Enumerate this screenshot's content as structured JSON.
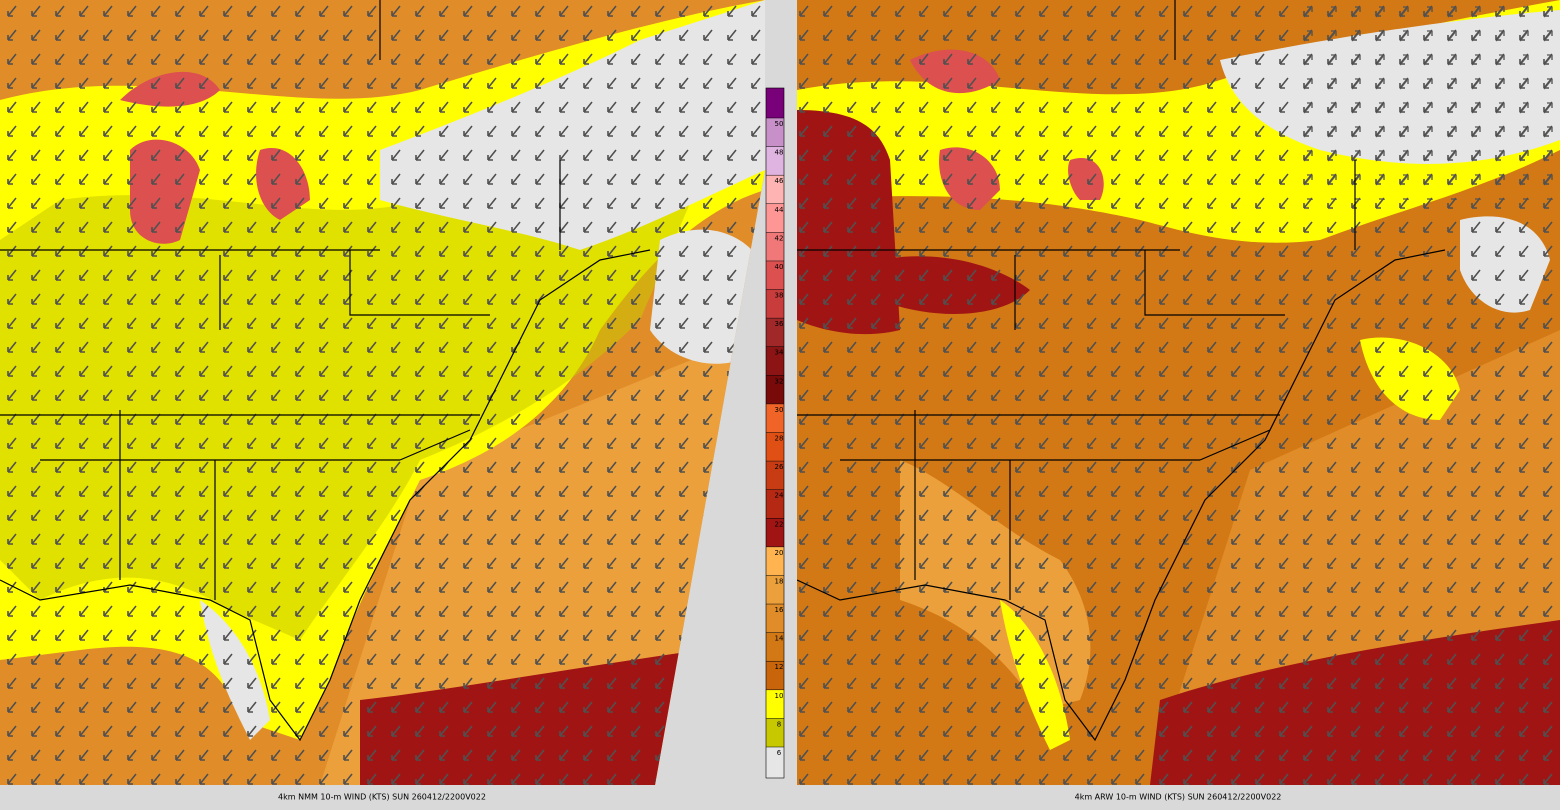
{
  "panels": [
    {
      "caption": "4km NMM 10-m WIND (KTS) SUN 260412/2200V022"
    },
    {
      "caption": "4km ARW 10-m WIND (KTS) SUN 260412/2200V022"
    }
  ],
  "colorbar": {
    "labels": [
      6,
      8,
      10,
      12,
      14,
      16,
      18,
      20,
      22,
      24,
      26,
      28,
      30,
      32,
      34,
      36,
      38,
      40,
      42,
      44,
      46,
      48,
      50
    ],
    "colors": [
      "#e6e6e6",
      "#c8c800",
      "#ffff00",
      "#c8640a",
      "#d27814",
      "#e08c28",
      "#eba03c",
      "#ffb450",
      "#a01414",
      "#b42814",
      "#c83c14",
      "#e05014",
      "#f06428",
      "#780a0a",
      "#8c1414",
      "#a02828",
      "#c83c3c",
      "#dc5050",
      "#f07878",
      "#ff9696",
      "#ffb4b4",
      "#e0b4e0",
      "#c890c8",
      "#780078"
    ]
  }
}
